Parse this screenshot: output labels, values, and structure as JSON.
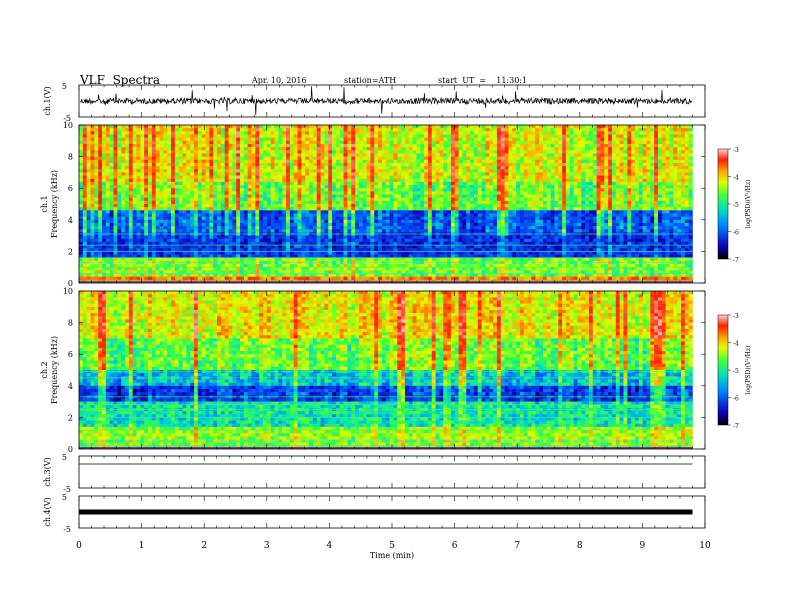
{
  "header": {
    "title": "VLF  Spectra",
    "date": "Apr. 10, 2016",
    "station": "station=ATH",
    "start": "start  UT  =    11:30:1"
  },
  "chart_data": [
    {
      "type": "line",
      "panel": "ch1-waveform",
      "ylabel": "ch.1(V)",
      "yticks": [
        "5",
        "-5"
      ],
      "ylim": [
        -5,
        5
      ],
      "xlim": [
        0,
        10
      ],
      "series": [
        {
          "values_description": "noisy signal around 0 V",
          "mean": 0
        }
      ]
    },
    {
      "type": "heatmap",
      "panel": "ch1-spectrogram",
      "ylabel_lines": [
        "ch.1",
        "Frequency  (kHz)"
      ],
      "yticks": [
        "0",
        "2",
        "4",
        "6",
        "8",
        "10"
      ],
      "ylim": [
        0,
        10
      ],
      "xlim": [
        0,
        9.8
      ],
      "colorbar": {
        "label": "log(PSD)(V²/Hz)",
        "ticks": [
          "-3",
          "-4",
          "-5",
          "-6",
          "-7"
        ],
        "range": [
          -7,
          -3
        ]
      }
    },
    {
      "type": "heatmap",
      "panel": "ch2-spectrogram",
      "ylabel_lines": [
        "ch.2",
        "Frequency  (kHz)"
      ],
      "yticks": [
        "0",
        "2",
        "4",
        "6",
        "8",
        "10"
      ],
      "ylim": [
        0,
        10
      ],
      "xlim": [
        0,
        9.8
      ],
      "colorbar": {
        "label": "log(PSD)(V²/Hz)",
        "ticks": [
          "-3",
          "-4",
          "-5",
          "-6",
          "-7"
        ],
        "range": [
          -7,
          -3
        ]
      }
    },
    {
      "type": "line",
      "panel": "ch3-waveform",
      "ylabel": "ch.3(V)",
      "yticks": [
        "5",
        "-5"
      ],
      "ylim": [
        -5,
        5
      ],
      "series": [
        {
          "mean": 0
        }
      ]
    },
    {
      "type": "line",
      "panel": "ch4-waveform",
      "ylabel": "ch.4(V)",
      "yticks": [
        "5",
        "-5"
      ],
      "ylim": [
        -5,
        5
      ],
      "series": [
        {
          "mean": 0
        }
      ]
    },
    {
      "type": "axis",
      "panel": "time-axis",
      "xlabel": "Time  (min)",
      "xticks": [
        "0",
        "1",
        "2",
        "3",
        "4",
        "5",
        "6",
        "7",
        "8",
        "9",
        "10"
      ],
      "xlim": [
        0,
        10
      ]
    }
  ]
}
